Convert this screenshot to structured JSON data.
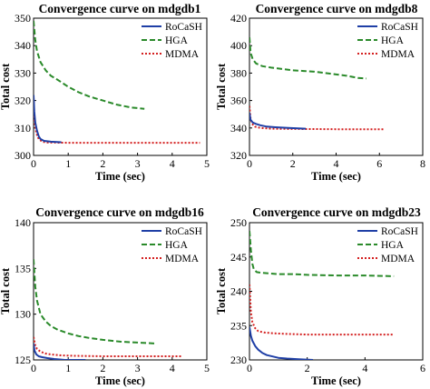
{
  "chart_data": [
    {
      "type": "line",
      "title": "Convergence curve on mdgdb1",
      "xlabel": "Time (sec)",
      "ylabel": "Total cost",
      "xlim": [
        0,
        5
      ],
      "ylim": [
        300,
        350
      ],
      "xticks": [
        0,
        1,
        2,
        3,
        4,
        5
      ],
      "yticks": [
        300,
        310,
        320,
        330,
        340,
        350
      ],
      "legend": "top-right",
      "grid": false,
      "series": [
        {
          "name": "RoCaSH",
          "color": "#1f3fa6",
          "style": "solid",
          "x": [
            0,
            0.02,
            0.05,
            0.1,
            0.15,
            0.2,
            0.3,
            0.5,
            0.8
          ],
          "y": [
            322,
            316,
            312,
            309,
            307,
            306,
            305.3,
            305,
            304.8
          ]
        },
        {
          "name": "HGA",
          "color": "#2a8a2a",
          "style": "dashed",
          "x": [
            0,
            0.05,
            0.1,
            0.2,
            0.35,
            0.5,
            0.7,
            1.0,
            1.3,
            1.6,
            2.0,
            2.4,
            2.8,
            3.2
          ],
          "y": [
            349,
            342,
            338,
            334,
            331,
            329,
            327.5,
            325,
            323,
            321.5,
            320,
            318.5,
            317.5,
            317
          ]
        },
        {
          "name": "MDMA",
          "color": "#d42020",
          "style": "dotted",
          "x": [
            0,
            0.03,
            0.08,
            0.15,
            0.25,
            0.4,
            1.0,
            2.0,
            3.0,
            4.0,
            4.8
          ],
          "y": [
            321,
            312,
            308,
            306,
            305,
            304.7,
            304.6,
            304.6,
            304.6,
            304.6,
            304.6
          ]
        }
      ]
    },
    {
      "type": "line",
      "title": "Convergence curve on mdgdb8",
      "xlabel": "Time (sec)",
      "ylabel": "Total cost",
      "xlim": [
        0,
        8
      ],
      "ylim": [
        320,
        420
      ],
      "xticks": [
        0,
        2,
        4,
        6,
        8
      ],
      "yticks": [
        320,
        340,
        360,
        380,
        400,
        420
      ],
      "legend": "top-right",
      "grid": false,
      "series": [
        {
          "name": "RoCaSH",
          "color": "#1f3fa6",
          "style": "solid",
          "x": [
            0,
            0.05,
            0.15,
            0.3,
            0.5,
            0.8,
            1.2,
            1.8,
            2.6
          ],
          "y": [
            351,
            346,
            344,
            343,
            342,
            341,
            340.5,
            340,
            339.5
          ]
        },
        {
          "name": "HGA",
          "color": "#2a8a2a",
          "style": "dashed",
          "x": [
            0,
            0.05,
            0.15,
            0.3,
            0.6,
            1.0,
            1.5,
            2.0,
            2.5,
            3.0,
            3.5,
            4.0,
            4.5,
            5.0,
            5.4
          ],
          "y": [
            406,
            395,
            390,
            387,
            385,
            384,
            383,
            382,
            381.5,
            381,
            380,
            379,
            378,
            376.5,
            376
          ]
        },
        {
          "name": "MDMA",
          "color": "#d42020",
          "style": "dotted",
          "x": [
            0,
            0.05,
            0.12,
            0.25,
            0.5,
            1.0,
            2.0,
            3.0,
            4.0,
            5.0,
            6.2
          ],
          "y": [
            356,
            347,
            343,
            341,
            340,
            339.5,
            339.3,
            339.2,
            339.1,
            339.1,
            339
          ]
        }
      ]
    },
    {
      "type": "line",
      "title": "Convergence curve on mdgdb16",
      "xlabel": "Time (sec)",
      "ylabel": "Total cost",
      "xlim": [
        0,
        5
      ],
      "ylim": [
        125,
        140
      ],
      "xticks": [
        0,
        1,
        2,
        3,
        4,
        5
      ],
      "yticks": [
        125,
        130,
        135,
        140
      ],
      "legend": "top-right",
      "grid": false,
      "series": [
        {
          "name": "RoCaSH",
          "color": "#1f3fa6",
          "style": "solid",
          "x": [
            0,
            0.03,
            0.08,
            0.15,
            0.25,
            0.4,
            0.6,
            0.9,
            1.2,
            1.5
          ],
          "y": [
            126.8,
            126,
            125.6,
            125.4,
            125.3,
            125.2,
            125.1,
            125,
            125,
            125
          ]
        },
        {
          "name": "HGA",
          "color": "#2a8a2a",
          "style": "dashed",
          "x": [
            0,
            0.05,
            0.1,
            0.2,
            0.35,
            0.5,
            0.7,
            1.0,
            1.3,
            1.6,
            2.0,
            2.5,
            3.0,
            3.5
          ],
          "y": [
            136,
            133,
            131.5,
            130,
            129.2,
            128.7,
            128.3,
            127.9,
            127.6,
            127.4,
            127.2,
            127,
            126.9,
            126.8
          ]
        },
        {
          "name": "MDMA",
          "color": "#d42020",
          "style": "dotted",
          "x": [
            0,
            0.05,
            0.1,
            0.2,
            0.35,
            0.5,
            0.8,
            1.2,
            2.0,
            3.0,
            4.3
          ],
          "y": [
            127.5,
            126.6,
            126.2,
            125.9,
            125.7,
            125.6,
            125.5,
            125.45,
            125.4,
            125.4,
            125.4
          ]
        }
      ]
    },
    {
      "type": "line",
      "title": "Convergence curve on mdgdb23",
      "xlabel": "Time (sec)",
      "ylabel": "Total cost",
      "xlim": [
        0,
        6
      ],
      "ylim": [
        230,
        250
      ],
      "xticks": [
        0,
        2,
        4,
        6
      ],
      "yticks": [
        230,
        235,
        240,
        245,
        250
      ],
      "legend": "top-right",
      "grid": false,
      "series": [
        {
          "name": "RoCaSH",
          "color": "#1f3fa6",
          "style": "solid",
          "x": [
            0,
            0.05,
            0.1,
            0.2,
            0.3,
            0.45,
            0.6,
            0.8,
            1.0,
            1.3,
            1.7,
            2.2
          ],
          "y": [
            234.8,
            233.5,
            232.8,
            232,
            231.5,
            231,
            230.7,
            230.5,
            230.3,
            230.2,
            230.1,
            230
          ]
        },
        {
          "name": "HGA",
          "color": "#2a8a2a",
          "style": "dashed",
          "x": [
            0,
            0.05,
            0.1,
            0.15,
            0.25,
            0.4,
            0.7,
            1.0,
            1.5,
            2.0,
            3.0,
            4.0,
            5.0
          ],
          "y": [
            248.8,
            246,
            244,
            243.2,
            242.8,
            242.7,
            242.6,
            242.5,
            242.5,
            242.4,
            242.3,
            242.3,
            242.2
          ]
        },
        {
          "name": "MDMA",
          "color": "#d42020",
          "style": "dotted",
          "x": [
            0,
            0.05,
            0.1,
            0.2,
            0.3,
            0.5,
            0.8,
            1.2,
            2.0,
            3.0,
            4.0,
            5.0
          ],
          "y": [
            241,
            237,
            235.5,
            234.6,
            234.2,
            234,
            233.9,
            233.8,
            233.7,
            233.7,
            233.7,
            233.7
          ]
        }
      ]
    }
  ]
}
